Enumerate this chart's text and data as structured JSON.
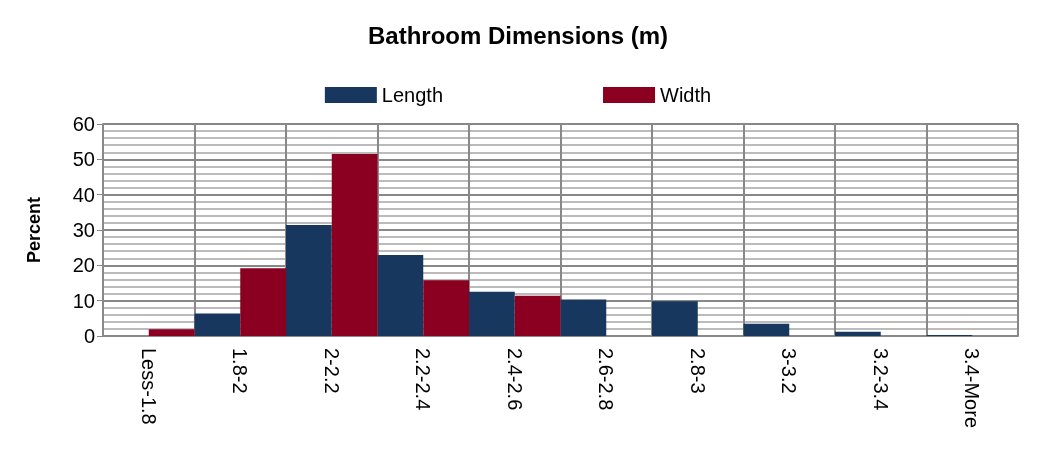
{
  "chart_data": {
    "type": "bar",
    "title": "Bathroom Dimensions (m)",
    "ylabel": "Percent",
    "categories": [
      "Less-1.8",
      "1.8-2",
      "2-2.2",
      "2.2-2.4",
      "2.4-2.6",
      "2.6-2.8",
      "2.8-3",
      "3-3.2",
      "3.2-3.4",
      "3.4-More"
    ],
    "series": [
      {
        "name": "Length",
        "color": "#17375e",
        "values": [
          0,
          6.4,
          31.4,
          22.9,
          12.5,
          10.3,
          9.8,
          3.5,
          1.2,
          0.3
        ]
      },
      {
        "name": "Width",
        "color": "#8b0021",
        "values": [
          1.9,
          19.2,
          51.5,
          15.8,
          11.4,
          0,
          0,
          0,
          0,
          0
        ]
      }
    ],
    "ylim": [
      0,
      60
    ],
    "yticks": [
      0,
      10,
      20,
      30,
      40,
      50,
      60
    ],
    "grid": true,
    "legend": "top"
  }
}
